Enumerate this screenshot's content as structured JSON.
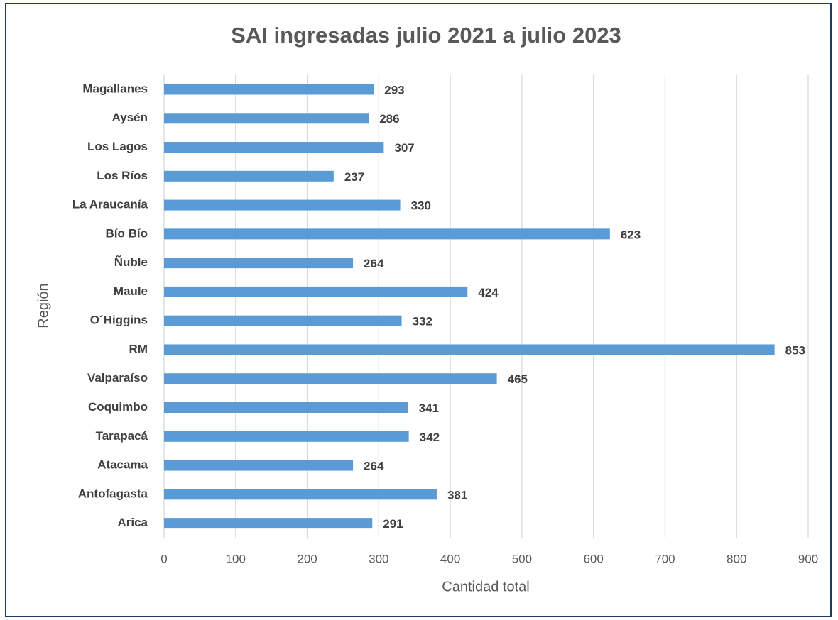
{
  "chart_data": {
    "type": "bar",
    "orientation": "horizontal",
    "title": "SAI ingresadas julio 2021 a julio 2023",
    "x_label": "Cantidad total",
    "y_label": "Región",
    "categories": [
      "Magallanes",
      "Aysén",
      "Los Lagos",
      "Los Ríos",
      "La Araucanía",
      "Bío Bío",
      "Ñuble",
      "Maule",
      "O´Higgins",
      "RM",
      "Valparaíso",
      "Coquimbo",
      "Tarapacá",
      "Atacama",
      "Antofagasta",
      "Arica"
    ],
    "values": [
      293,
      286,
      307,
      237,
      330,
      623,
      264,
      424,
      332,
      853,
      465,
      341,
      342,
      264,
      381,
      291
    ],
    "color": "#5b9bd5",
    "xlim": [
      0,
      900
    ],
    "xticks": [
      0,
      100,
      200,
      300,
      400,
      500,
      600,
      700,
      800,
      900
    ],
    "grid": true
  }
}
